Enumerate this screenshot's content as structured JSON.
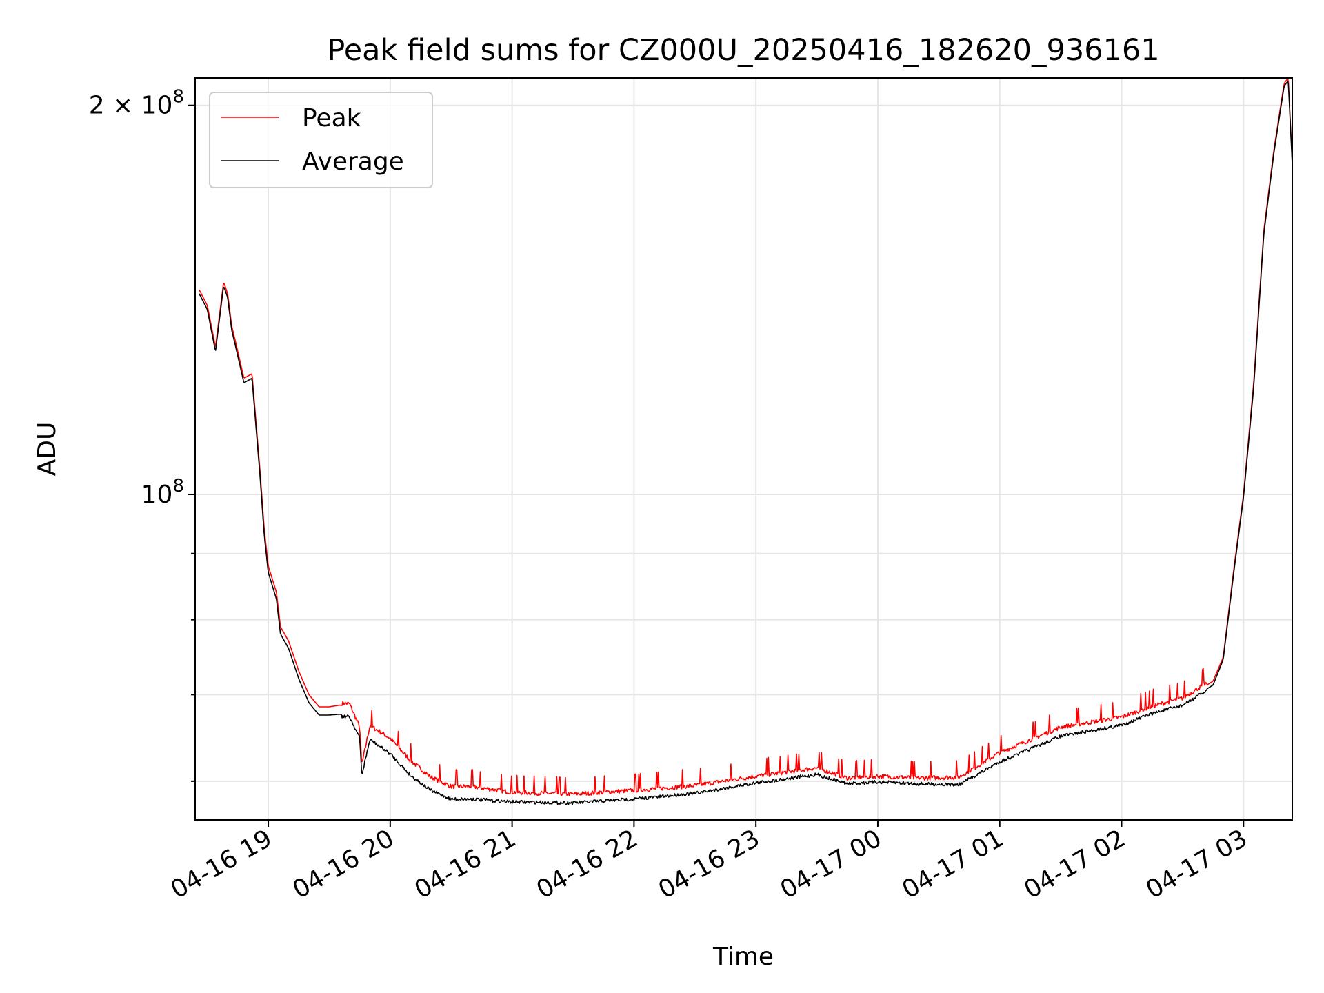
{
  "chart_data": {
    "type": "line",
    "title": "Peak field sums for CZ000U_20250416_182620_936161",
    "xlabel": "Time",
    "ylabel": "ADU",
    "yscale": "log",
    "ylim": [
      56000000,
      210000000
    ],
    "xlim_hours_from_1800": [
      0.4,
      9.4
    ],
    "grid": true,
    "legend_position": "upper left",
    "x_ticks": [
      "04-16 19",
      "04-16 20",
      "04-16 21",
      "04-16 22",
      "04-16 23",
      "04-17 00",
      "04-17 01",
      "04-17 02",
      "04-17 03"
    ],
    "y_ticks": [
      {
        "value": 100000000,
        "label_base": "10",
        "label_exp": "8",
        "label_coef": ""
      },
      {
        "value": 200000000,
        "label_base": "10",
        "label_exp": "8",
        "label_coef": "2 × "
      }
    ],
    "y_minor_ticks": [
      60000000,
      70000000,
      80000000,
      90000000
    ],
    "series": [
      {
        "name": "Peak",
        "color": "#ff0000",
        "x": [
          "2025-04-16 18:26",
          "2025-04-16 18:30",
          "2025-04-16 18:34",
          "2025-04-16 18:38",
          "2025-04-16 18:40",
          "2025-04-16 18:42",
          "2025-04-16 18:44",
          "2025-04-16 18:48",
          "2025-04-16 18:52",
          "2025-04-16 18:56",
          "2025-04-16 18:58",
          "2025-04-16 19:00",
          "2025-04-16 19:04",
          "2025-04-16 19:06",
          "2025-04-16 19:10",
          "2025-04-16 19:15",
          "2025-04-16 19:20",
          "2025-04-16 19:25",
          "2025-04-16 19:30",
          "2025-04-16 19:35",
          "2025-04-16 19:40",
          "2025-04-16 19:45",
          "2025-04-16 19:46",
          "2025-04-16 19:50",
          "2025-04-16 20:00",
          "2025-04-16 20:10",
          "2025-04-16 20:20",
          "2025-04-16 20:30",
          "2025-04-16 20:40",
          "2025-04-16 21:00",
          "2025-04-16 21:30",
          "2025-04-16 22:00",
          "2025-04-16 22:30",
          "2025-04-16 23:00",
          "2025-04-16 23:30",
          "2025-04-16 23:45",
          "2025-04-17 00:00",
          "2025-04-17 00:20",
          "2025-04-17 00:40",
          "2025-04-17 01:00",
          "2025-04-17 01:30",
          "2025-04-17 02:00",
          "2025-04-17 02:15",
          "2025-04-17 02:30",
          "2025-04-17 02:45",
          "2025-04-17 02:50",
          "2025-04-17 02:55",
          "2025-04-17 03:00",
          "2025-04-17 03:05",
          "2025-04-17 03:10",
          "2025-04-17 03:15",
          "2025-04-17 03:20",
          "2025-04-17 03:22",
          "2025-04-17 03:24"
        ],
        "y": [
          144000000,
          140000000,
          130000000,
          146000000,
          143000000,
          135000000,
          131000000,
          123000000,
          124000000,
          104000000,
          94000000,
          88000000,
          84000000,
          79000000,
          77000000,
          73000000,
          70000000,
          68500000,
          68500000,
          68700000,
          68600000,
          65800000,
          61500000,
          66000000,
          64500000,
          62000000,
          60200000,
          59200000,
          59200000,
          58600000,
          58400000,
          58800000,
          59300000,
          60300000,
          61200000,
          60100000,
          60300000,
          60100000,
          60200000,
          62900000,
          65800000,
          67000000,
          68300000,
          69300000,
          71700000,
          74800000,
          87000000,
          100000000,
          122000000,
          160000000,
          185000000,
          208000000,
          210000000,
          181000000
        ]
      },
      {
        "name": "Average",
        "color": "#000000",
        "x": [
          "2025-04-16 18:26",
          "2025-04-16 18:30",
          "2025-04-16 18:34",
          "2025-04-16 18:38",
          "2025-04-16 18:40",
          "2025-04-16 18:42",
          "2025-04-16 18:44",
          "2025-04-16 18:48",
          "2025-04-16 18:52",
          "2025-04-16 18:56",
          "2025-04-16 18:58",
          "2025-04-16 19:00",
          "2025-04-16 19:04",
          "2025-04-16 19:06",
          "2025-04-16 19:10",
          "2025-04-16 19:15",
          "2025-04-16 19:20",
          "2025-04-16 19:25",
          "2025-04-16 19:30",
          "2025-04-16 19:35",
          "2025-04-16 19:40",
          "2025-04-16 19:45",
          "2025-04-16 19:46",
          "2025-04-16 19:50",
          "2025-04-16 20:00",
          "2025-04-16 20:10",
          "2025-04-16 20:20",
          "2025-04-16 20:30",
          "2025-04-16 20:40",
          "2025-04-16 21:00",
          "2025-04-16 21:30",
          "2025-04-16 22:00",
          "2025-04-16 22:30",
          "2025-04-16 23:00",
          "2025-04-16 23:30",
          "2025-04-16 23:45",
          "2025-04-17 00:00",
          "2025-04-17 00:20",
          "2025-04-17 00:40",
          "2025-04-17 01:00",
          "2025-04-17 01:30",
          "2025-04-17 02:00",
          "2025-04-17 02:15",
          "2025-04-17 02:30",
          "2025-04-17 02:45",
          "2025-04-17 02:50",
          "2025-04-17 02:55",
          "2025-04-17 03:00",
          "2025-04-17 03:05",
          "2025-04-17 03:10",
          "2025-04-17 03:15",
          "2025-04-17 03:20",
          "2025-04-17 03:22",
          "2025-04-17 03:24"
        ],
        "y": [
          143000000,
          139000000,
          129000000,
          145000000,
          142000000,
          134000000,
          130000000,
          122000000,
          123000000,
          103000000,
          93000000,
          87000000,
          83000000,
          78000000,
          76000000,
          72000000,
          69000000,
          67500000,
          67500000,
          67600000,
          67500000,
          65000000,
          60800000,
          64800000,
          63200000,
          60800000,
          59200000,
          58300000,
          58300000,
          58000000,
          57900000,
          58300000,
          58900000,
          60000000,
          60900000,
          59900000,
          60100000,
          59900000,
          59800000,
          62300000,
          65200000,
          66500000,
          67900000,
          68900000,
          71200000,
          74500000,
          86500000,
          99500000,
          121000000,
          159000000,
          184000000,
          207000000,
          209000000,
          180000000
        ]
      }
    ]
  }
}
